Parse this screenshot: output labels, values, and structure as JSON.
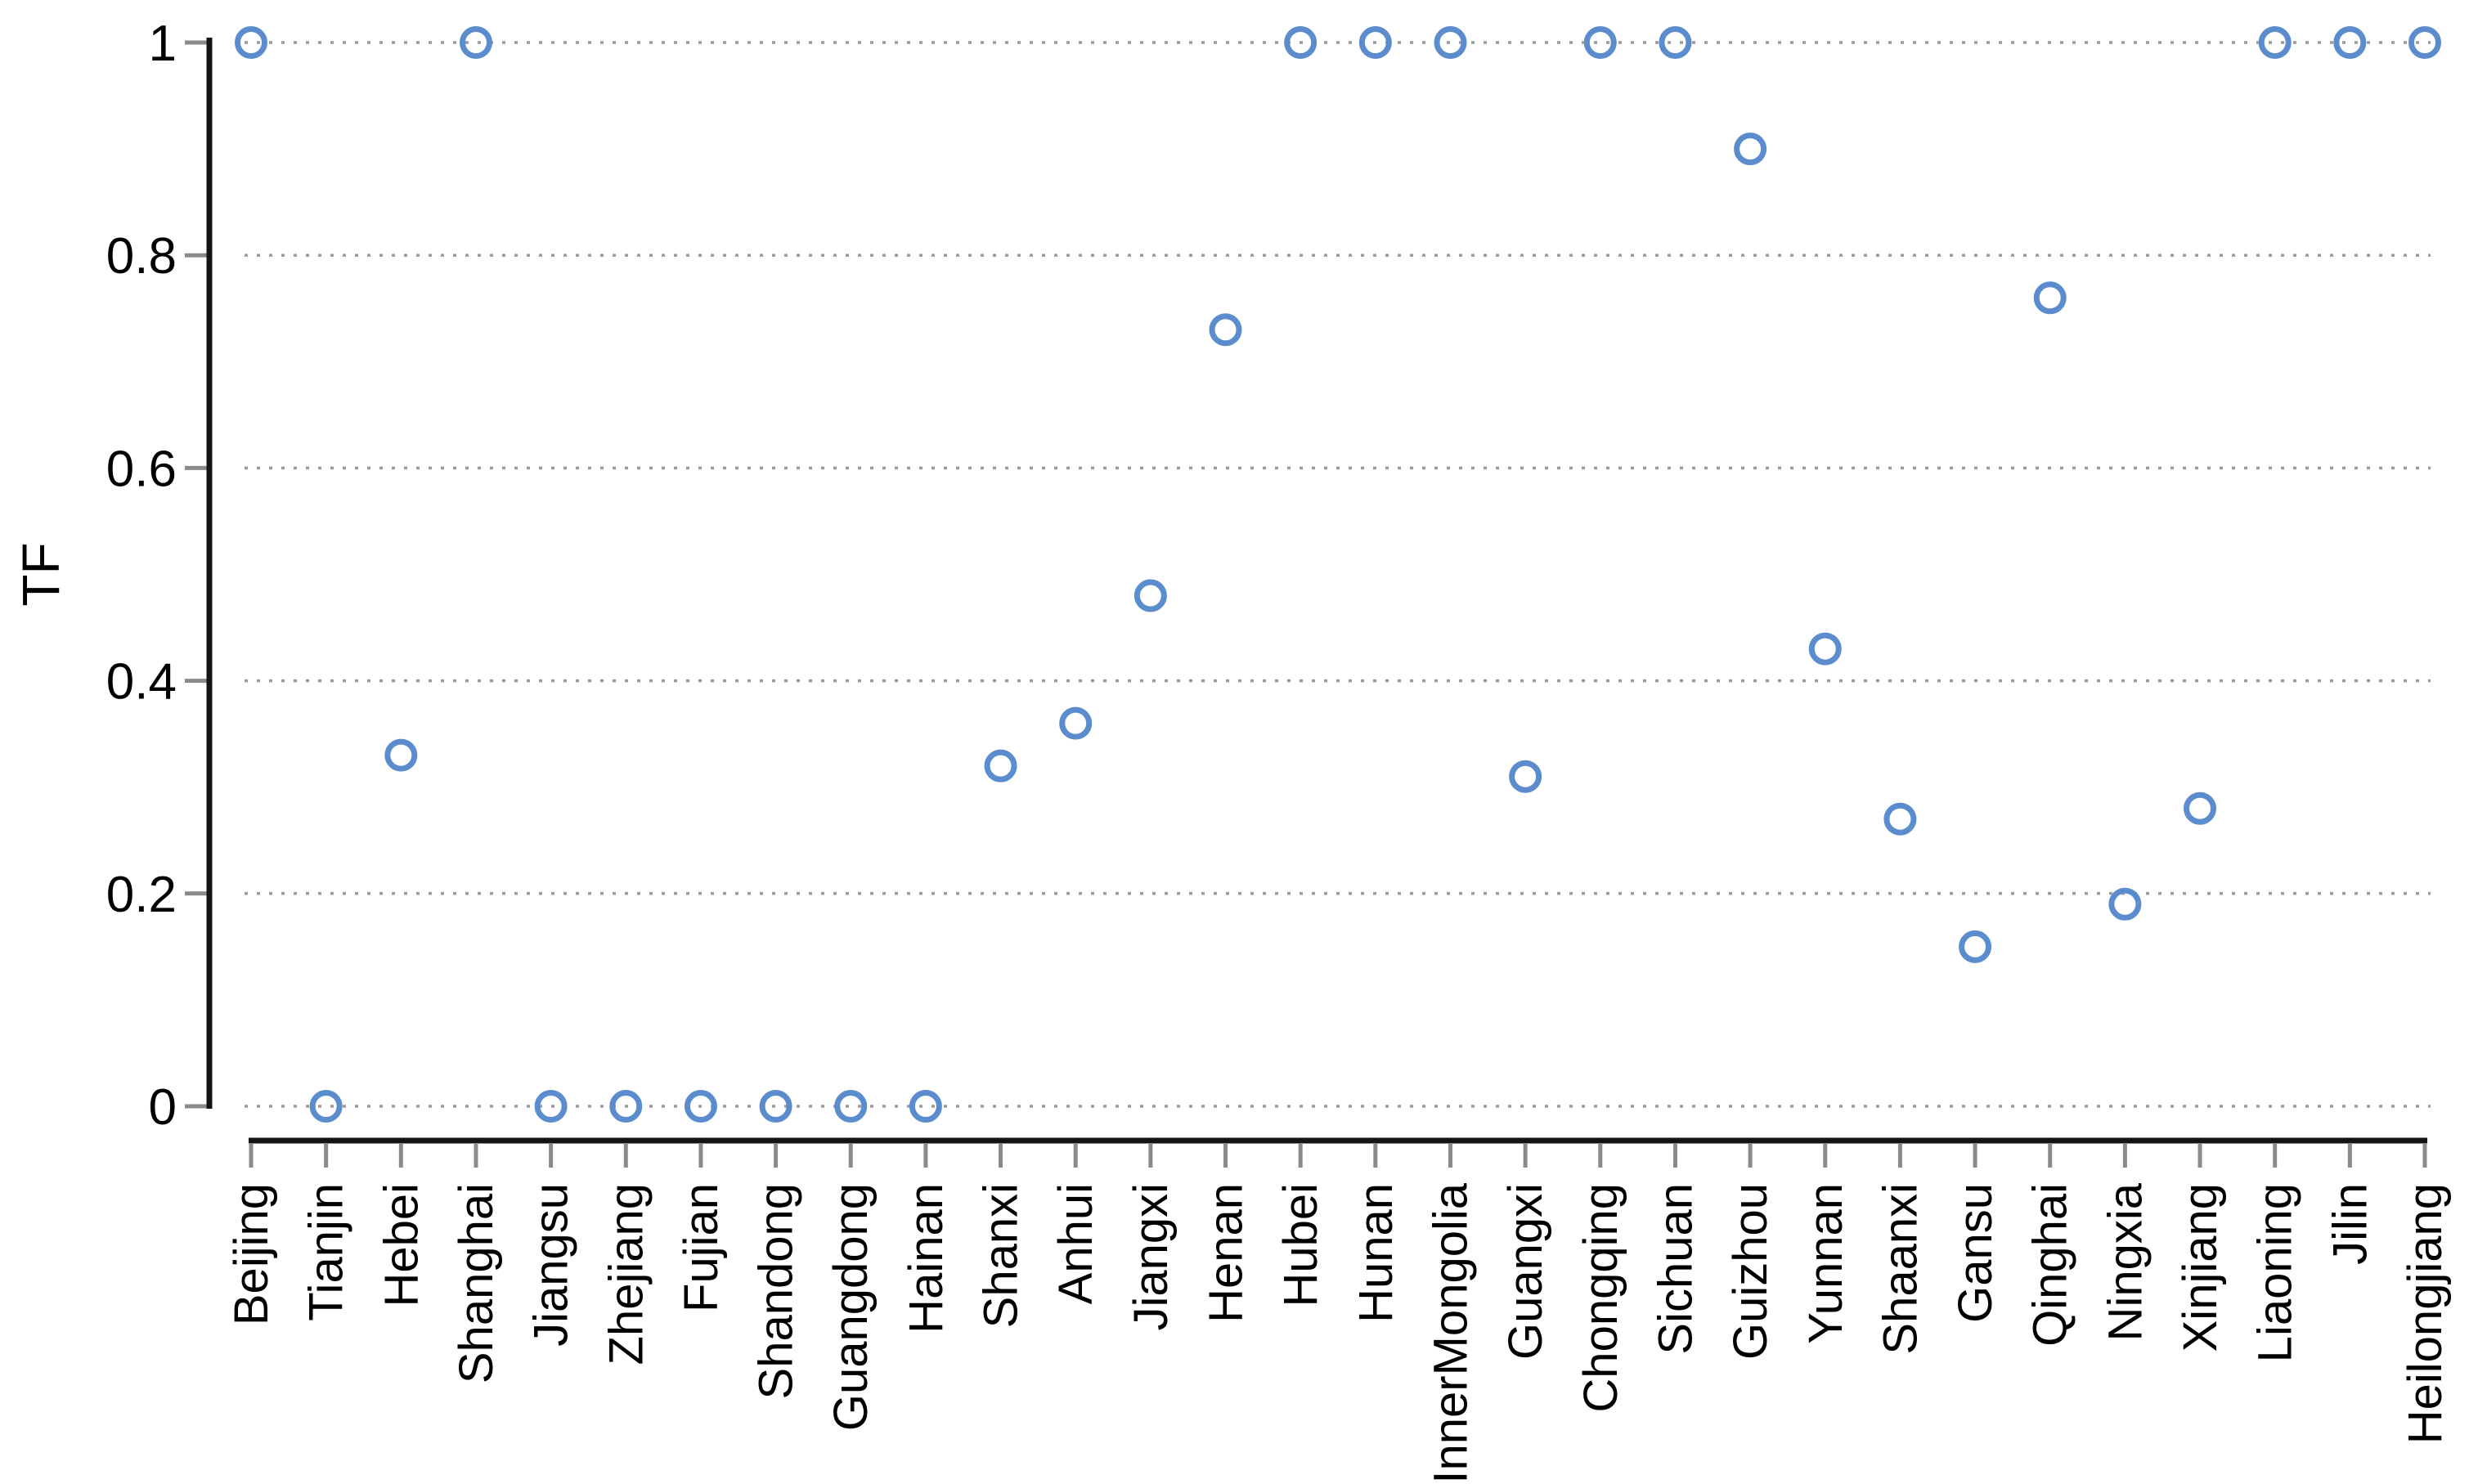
{
  "chart_data": {
    "type": "scatter",
    "title": "",
    "xlabel": "",
    "ylabel": "TF",
    "ylim": [
      0,
      1
    ],
    "yticks": [
      0,
      0.2,
      0.4,
      0.6,
      0.8,
      1
    ],
    "ytick_labels": [
      "0",
      "0.2",
      "0.4",
      "0.6",
      "0.8",
      "1"
    ],
    "grid": "horizontal-dotted",
    "legend_position": "none",
    "marker_shape": "open-circle",
    "categories": [
      "Beijing",
      "Tianjin",
      "Hebei",
      "Shanghai",
      "Jiangsu",
      "Zhejiang",
      "Fujian",
      "Shandong",
      "Guangdong",
      "Hainan",
      "Shanxi",
      "Anhui",
      "Jiangxi",
      "Henan",
      "Hubei",
      "Hunan",
      "InnerMongolia",
      "Guangxi",
      "Chongqing",
      "Sichuan",
      "Guizhou",
      "Yunnan",
      "Shaanxi",
      "Gansu",
      "Qinghai",
      "Ningxia",
      "Xinjiang",
      "Liaoning",
      "Jilin",
      "Heilongjiang"
    ],
    "values": [
      1,
      0,
      0.33,
      1,
      0,
      0,
      0,
      0,
      0,
      0,
      0.32,
      0.36,
      0.48,
      0.73,
      1,
      1,
      1,
      0.31,
      1,
      1,
      0.9,
      0.43,
      0.27,
      0.15,
      0.76,
      0.19,
      0.28,
      1,
      1,
      1
    ],
    "colors": {
      "marker_stroke": "#5b8ccd",
      "grid": "#9b9b9b",
      "axis": "#141414",
      "tick": "#8a8a8a",
      "text": "#000000"
    }
  }
}
